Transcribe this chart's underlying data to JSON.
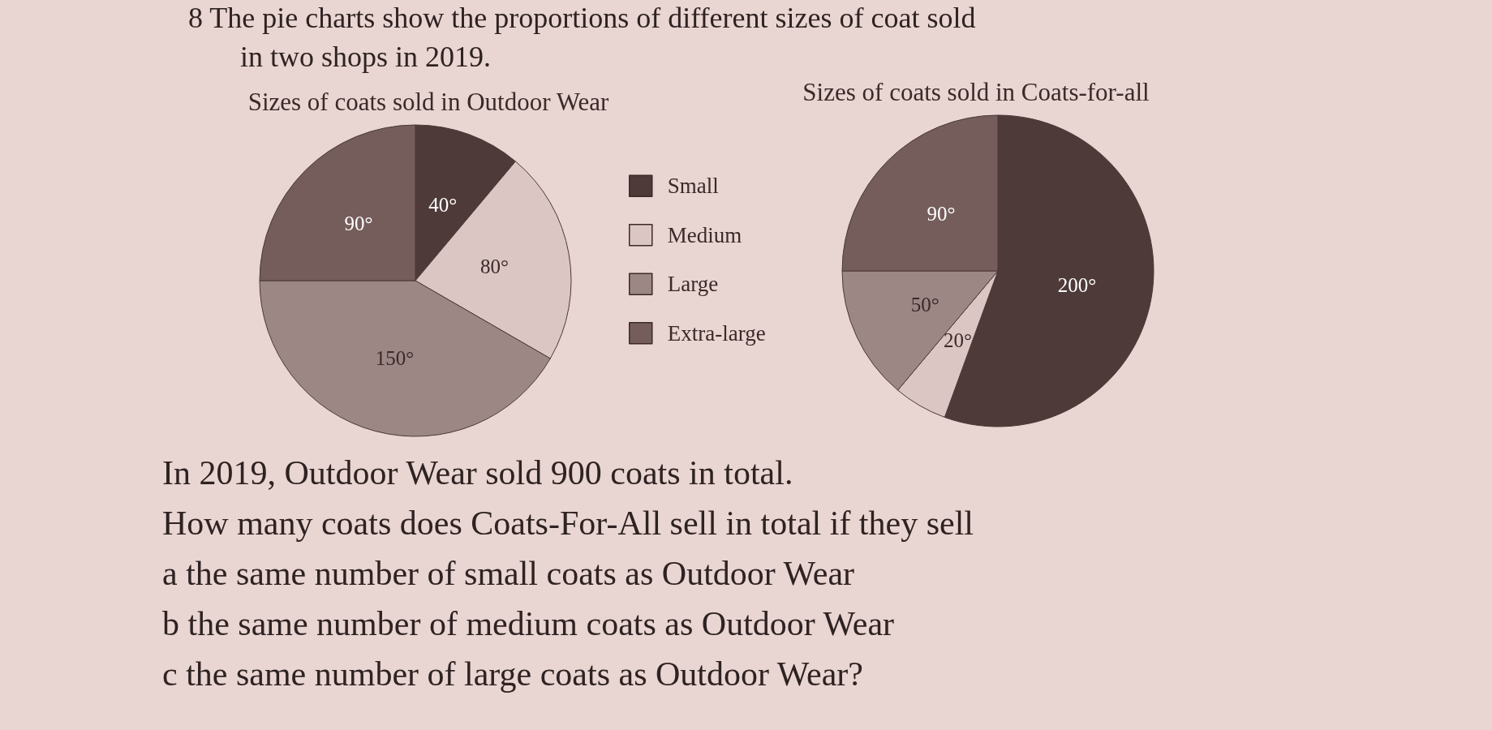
{
  "chart_data": {
    "type": "pie",
    "title": "8 The pie charts show the proportions of different sizes of coat sold in two shops in 2019.",
    "categories": [
      "Small",
      "Medium",
      "Large",
      "Extra-large"
    ],
    "series": [
      {
        "name": "Sizes of coats sold in Outdoor Wear",
        "values": [
          40,
          80,
          150,
          90
        ],
        "colors": [
          "#4e3a39",
          "#dcc6c3",
          "#9c8785",
          "#745d5b"
        ],
        "value_labels": [
          "40°",
          "80°",
          "150°",
          "90°"
        ]
      },
      {
        "name": "Sizes of coats sold in Coats-for-all",
        "values": [
          200,
          20,
          50,
          90
        ],
        "colors": [
          "#4e3a39",
          "#dcc6c3",
          "#9c8785",
          "#745d5b"
        ],
        "value_labels": [
          "200°",
          "20°",
          "50°",
          "90°"
        ]
      }
    ],
    "legend": "center",
    "annotations": [
      "In 2019, Outdoor Wear sold 900 coats in total.",
      "How many coats does Coats-For-All sell in total if they sell",
      "a the same number of small coats as Outdoor Wear",
      "b the same number of medium coats as Outdoor Wear",
      "c the same number of large coats as Outdoor Wear?"
    ]
  }
}
